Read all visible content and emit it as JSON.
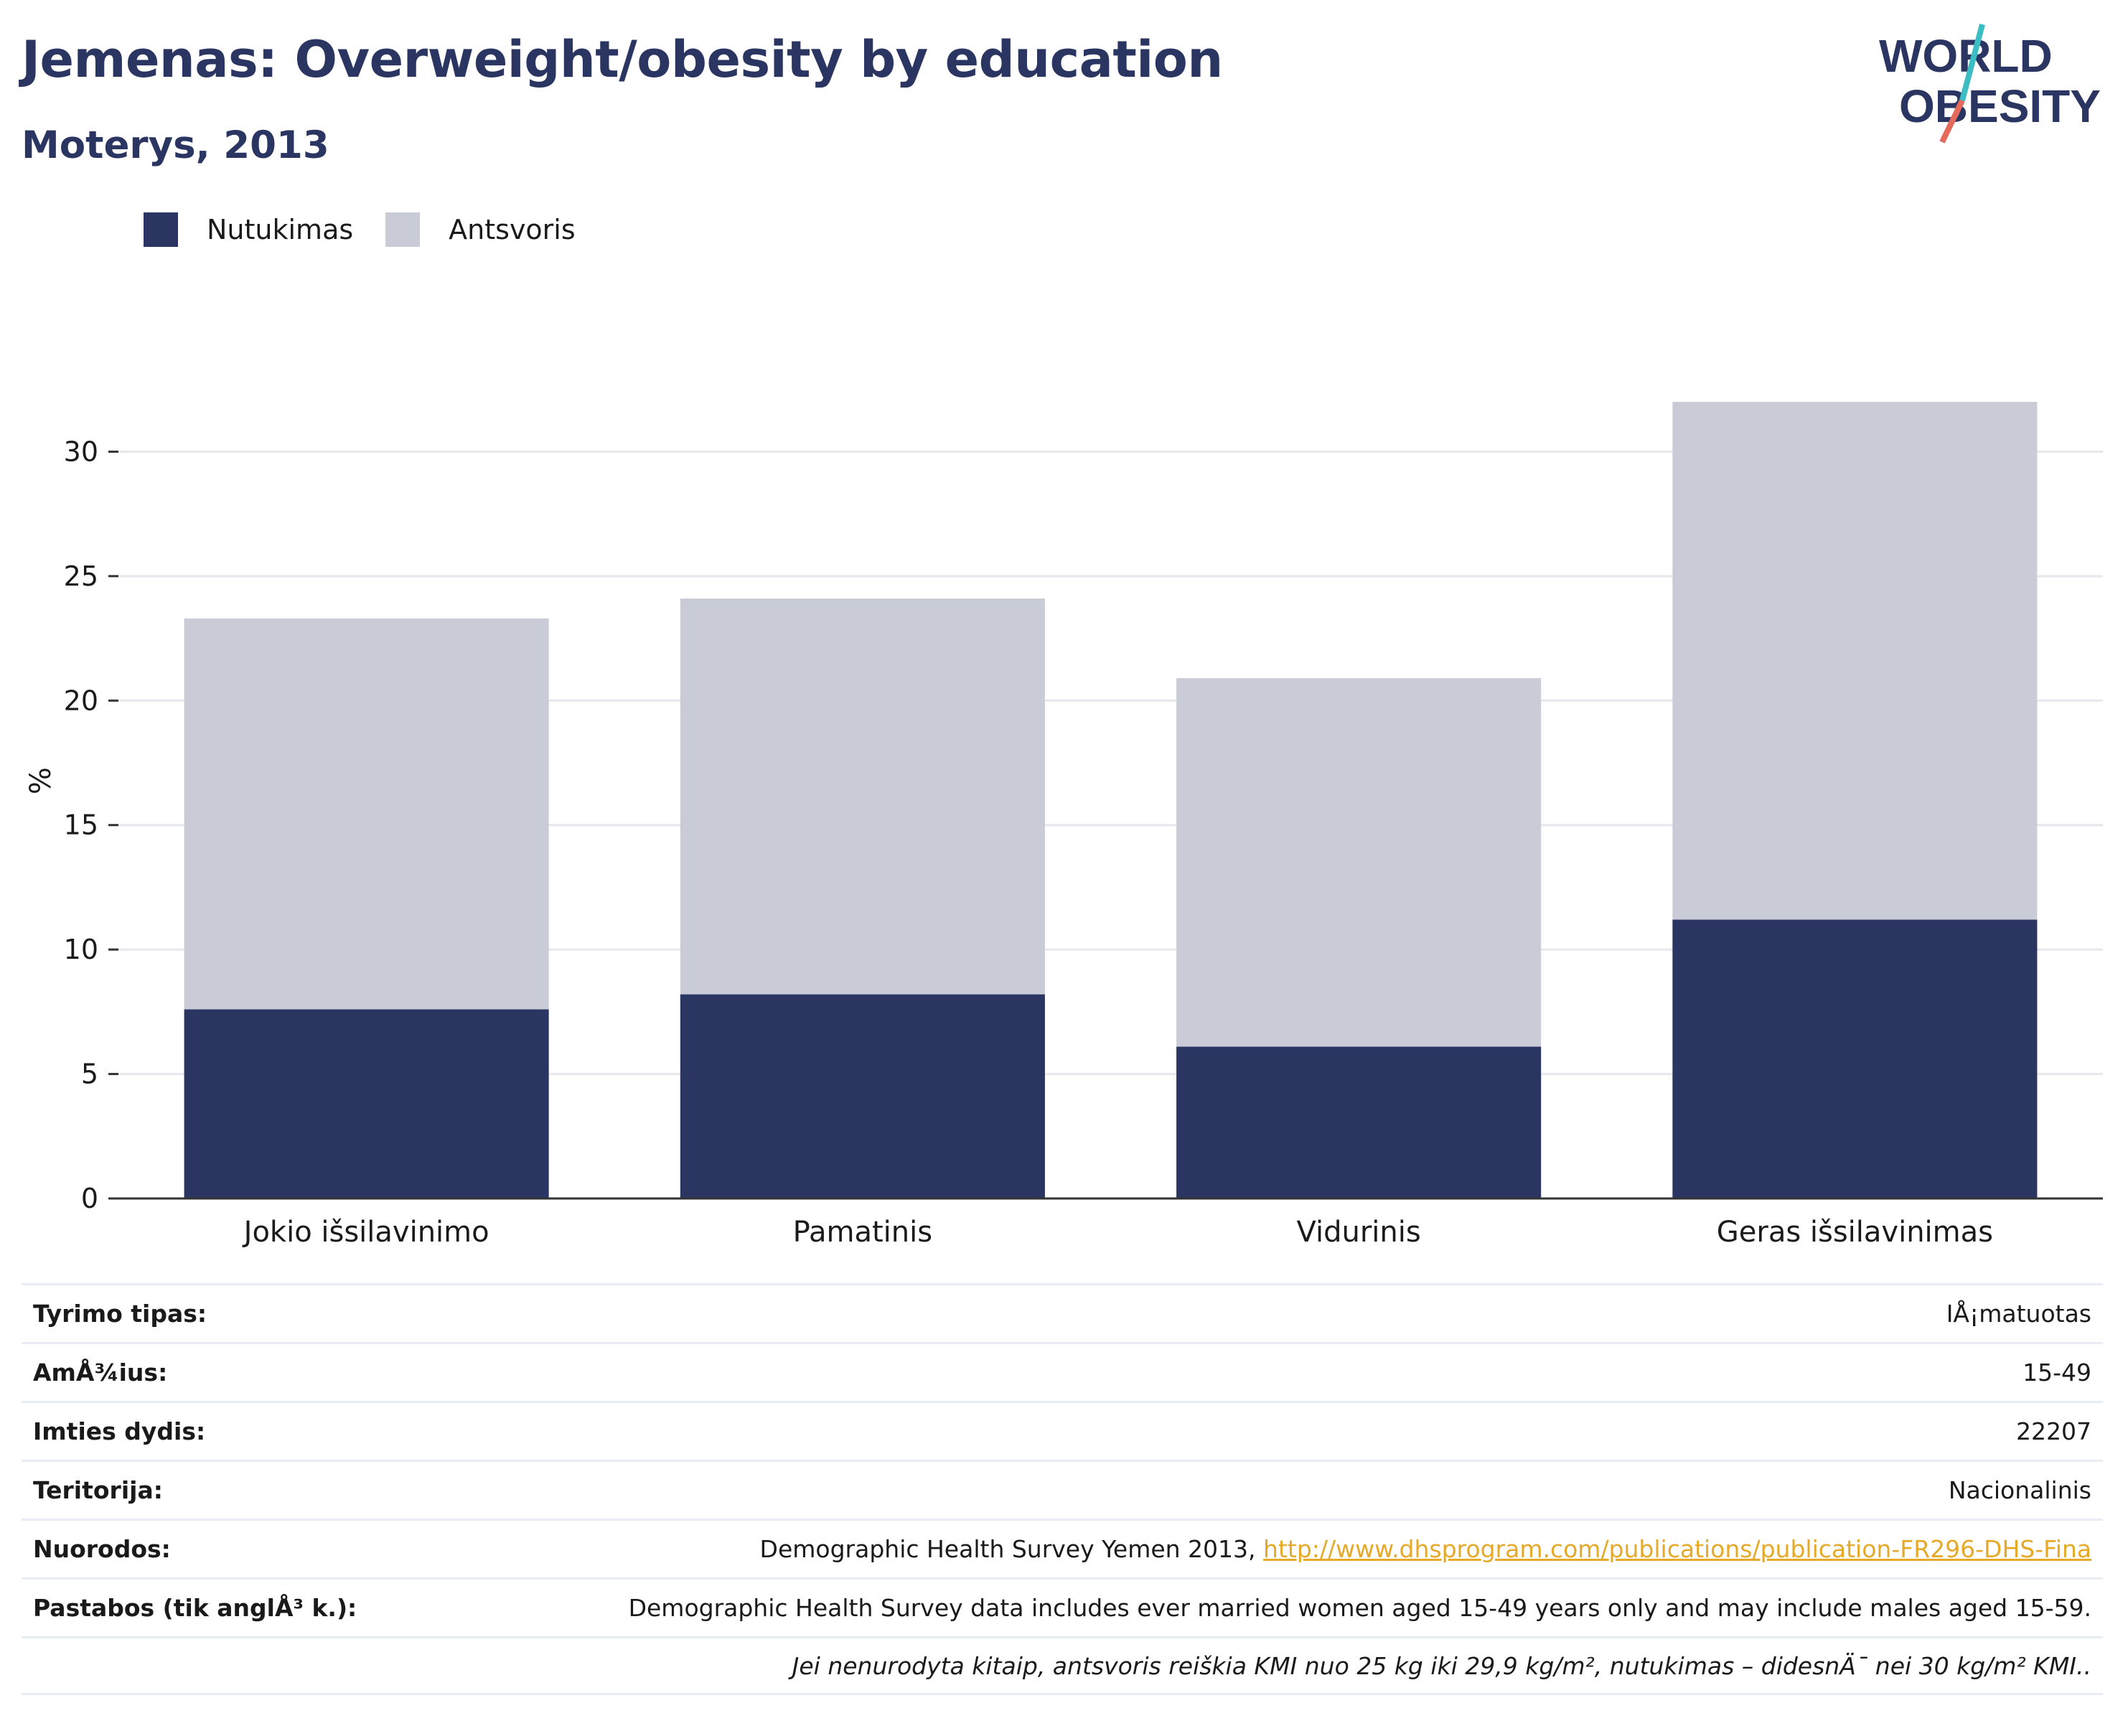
{
  "header": {
    "title": "Jemenas: Overweight/obesity by education",
    "subtitle": "Moterys, 2013",
    "logo_text_line1": "WORLD",
    "logo_text_line2": "OBESITY"
  },
  "legend": [
    {
      "label": "Nutukimas",
      "color": "#2a3561"
    },
    {
      "label": "Antsvoris",
      "color": "#c9cbd7"
    }
  ],
  "chart_data": {
    "type": "bar",
    "stacked": true,
    "title": "Jemenas: Overweight/obesity by education",
    "subtitle": "Moterys, 2013",
    "xlabel": "",
    "ylabel": "%",
    "ylim": [
      0,
      32
    ],
    "yticks": [
      0,
      5,
      10,
      15,
      20,
      25,
      30
    ],
    "grid": true,
    "legend_position": "top-left",
    "categories": [
      "Jokio išsilavinimo",
      "Pamatinis",
      "Vidurinis",
      "Geras išsilavinimas"
    ],
    "series": [
      {
        "name": "Nutukimas",
        "color": "#2a3561",
        "values": [
          7.6,
          8.2,
          6.1,
          11.2
        ]
      },
      {
        "name": "Antsvoris",
        "color": "#c9cbd7",
        "values": [
          15.7,
          15.9,
          14.8,
          20.8
        ]
      }
    ]
  },
  "info_table": [
    {
      "key": "Tyrimo tipas:",
      "value": "IÅ¡matuotas"
    },
    {
      "key": "AmÅ¾ius:",
      "value": "15-49"
    },
    {
      "key": "Imties dydis:",
      "value": "22207"
    },
    {
      "key": "Teritorija:",
      "value": "Nacionalinis"
    },
    {
      "key": "Nuorodos:",
      "value": "Demographic Health Survey Yemen 2013, ",
      "link": "http://www.dhsprogram.com/publications/publication-FR296-DHS-Fina"
    },
    {
      "key": "Pastabos (tik anglÅ³ k.):",
      "value": "Demographic Health Survey data includes ever married women aged 15-49 years only and may include males aged 15-59."
    }
  ],
  "footnote": "Jei nenurodyta kitaip, antsvoris reiškia KMI nuo 25 kg iki 29,9 kg/m², nutukimas – didesnÄ¯ nei 30 kg/m² KMI.."
}
